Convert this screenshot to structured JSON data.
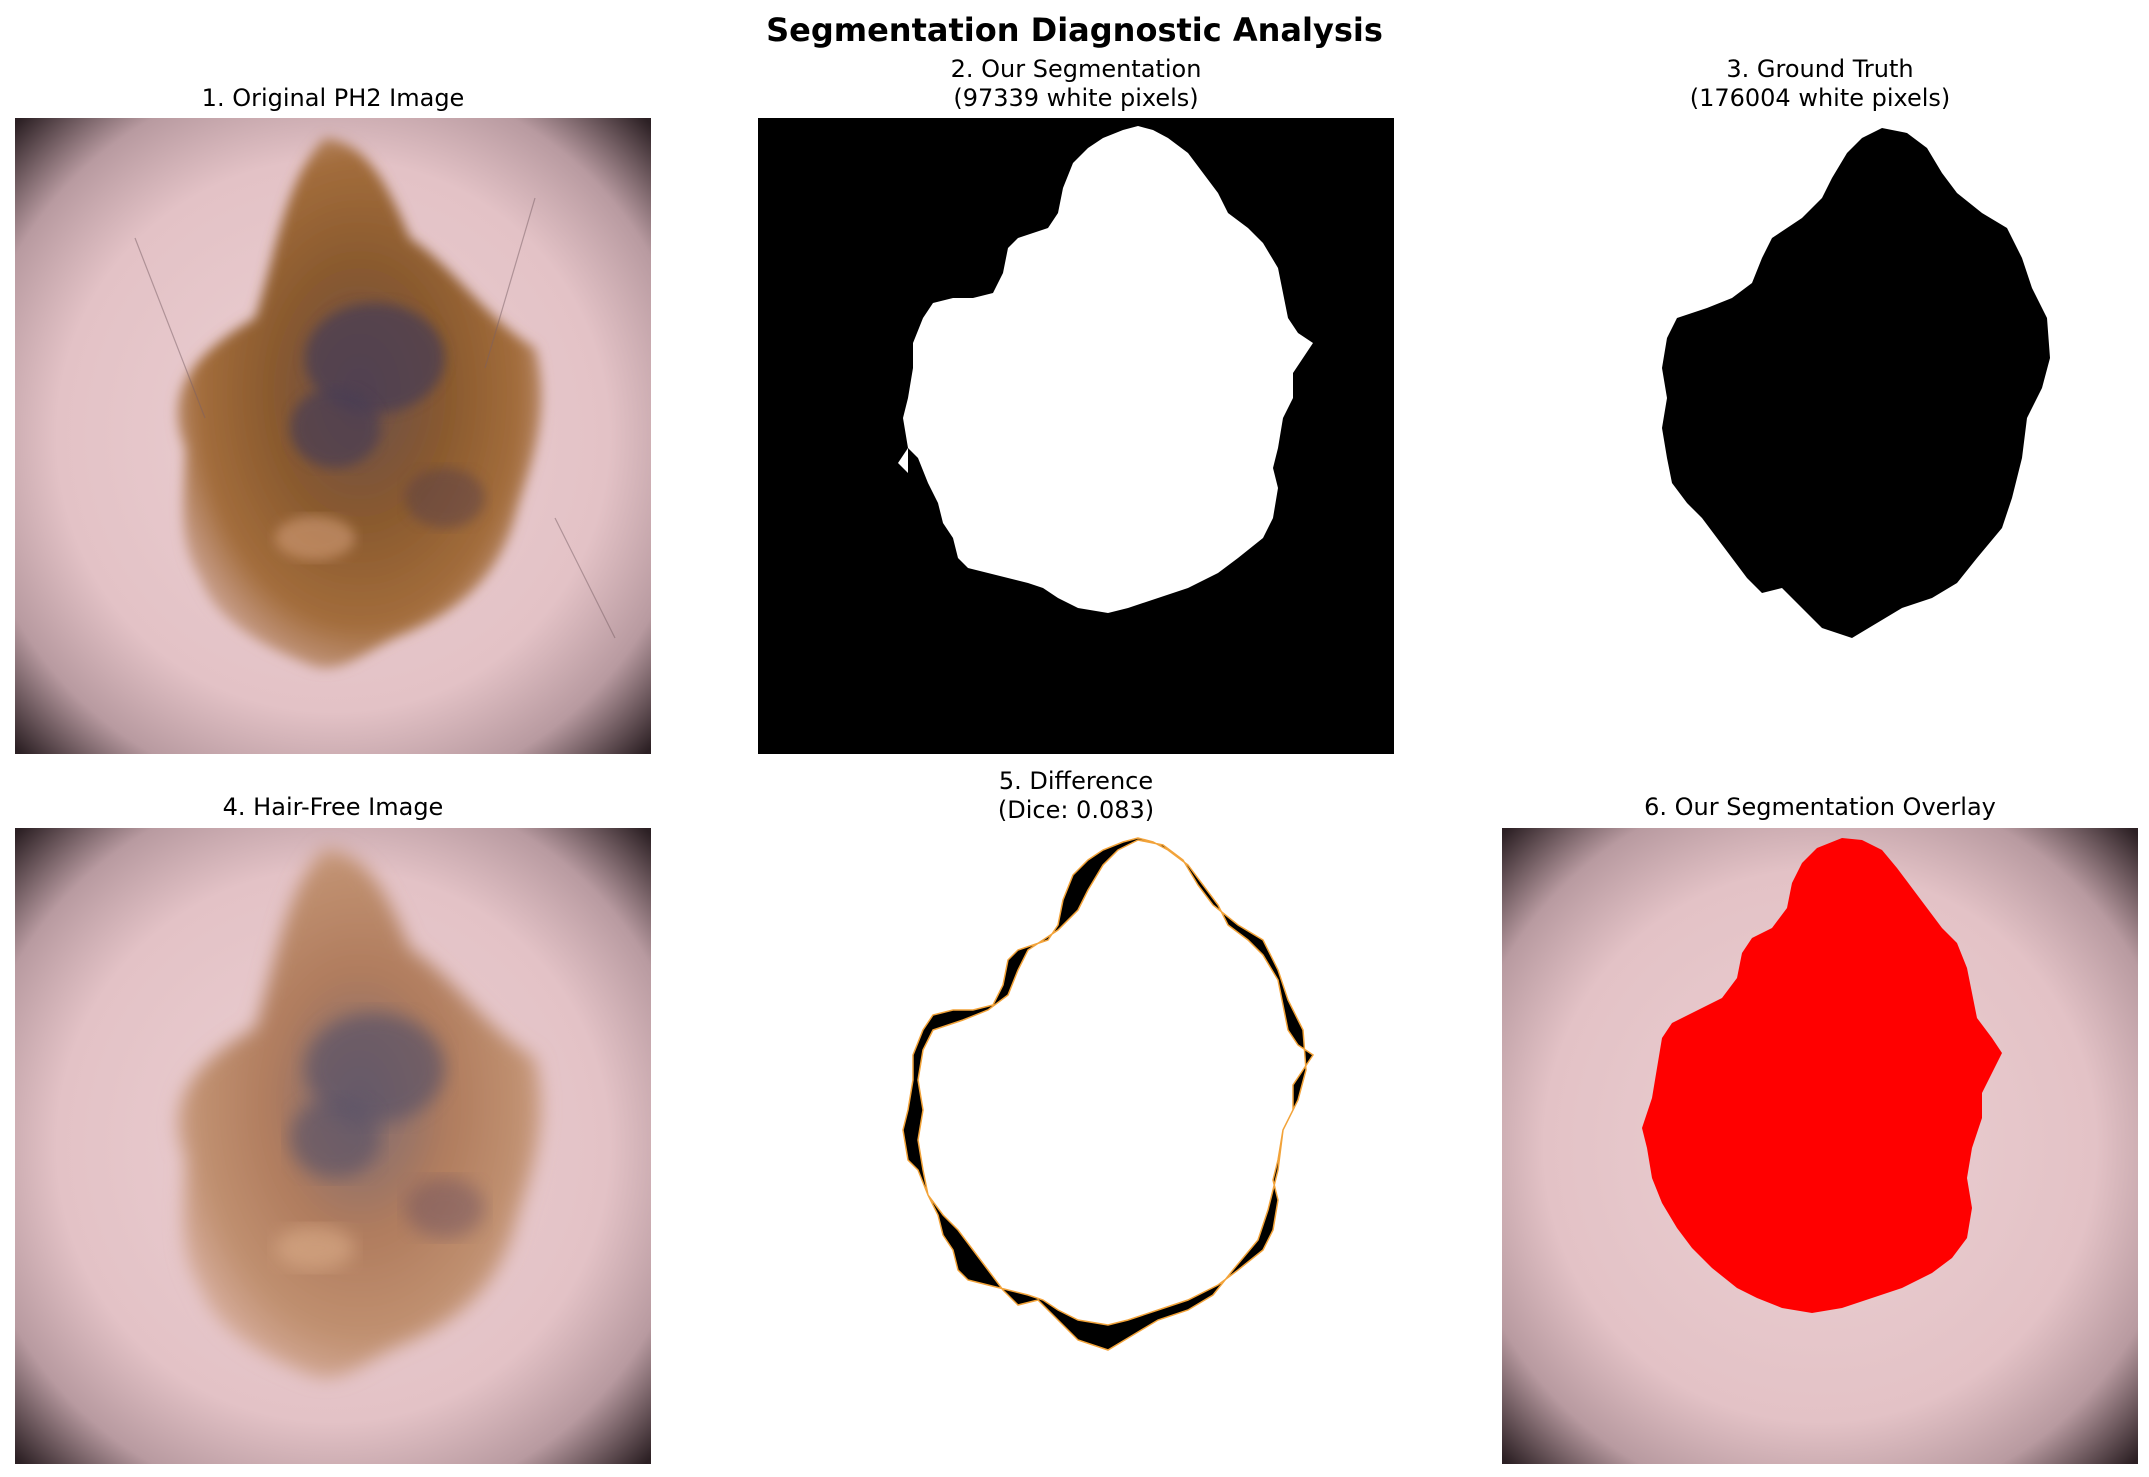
{
  "figure": {
    "title": "Segmentation Diagnostic Analysis"
  },
  "panels": [
    {
      "id": "original",
      "title": "1. Original PH2 Image"
    },
    {
      "id": "segmentation",
      "title": "2. Our Segmentation\n(97339 white pixels)"
    },
    {
      "id": "ground-truth",
      "title": "3. Ground Truth\n(176004 white pixels)"
    },
    {
      "id": "hair-free",
      "title": "4. Hair-Free Image"
    },
    {
      "id": "difference",
      "title": "5. Difference\n(Dice: 0.083)"
    },
    {
      "id": "overlay",
      "title": "6. Our Segmentation Overlay"
    }
  ],
  "colors": {
    "skin": "#e6c2c6",
    "lesion_brown": "#8a5a2e",
    "lesion_dark": "#4a3e52",
    "hair_free_lesion": "#b07c5e",
    "mask_white": "#ffffff",
    "mask_black": "#000000",
    "overlay_red": "#ff0000",
    "vignette": "#2c2024"
  }
}
